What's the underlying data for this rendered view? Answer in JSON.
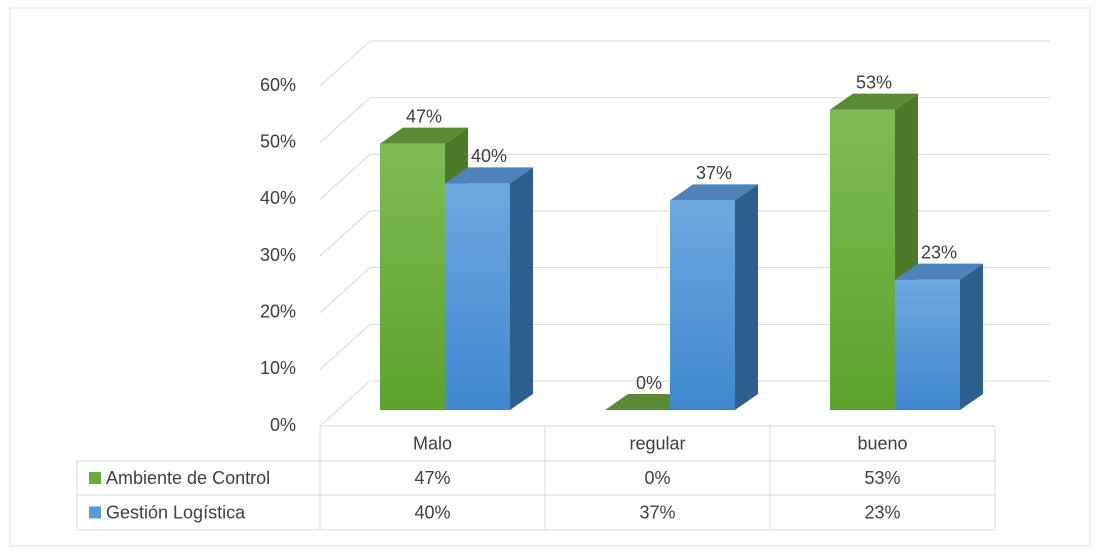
{
  "chart_data": {
    "type": "bar3d",
    "categories": [
      "Malo",
      "regular",
      "bueno"
    ],
    "series": [
      {
        "name": "Ambiente de Control",
        "color": "#6aab3c",
        "values": [
          47,
          0,
          53
        ],
        "value_labels": [
          "47%",
          "0%",
          "53%"
        ]
      },
      {
        "name": "Gestión Logística",
        "color": "#5b9bd5",
        "values": [
          40,
          37,
          23
        ],
        "value_labels": [
          "40%",
          "37%",
          "23%"
        ]
      }
    ],
    "ylim": [
      0,
      60
    ],
    "yticks": [
      {
        "value": 0,
        "label": "0%"
      },
      {
        "value": 10,
        "label": "10%"
      },
      {
        "value": 20,
        "label": "20%"
      },
      {
        "value": 30,
        "label": "30%"
      },
      {
        "value": 40,
        "label": "40%"
      },
      {
        "value": 50,
        "label": "50%"
      },
      {
        "value": 60,
        "label": "60%"
      }
    ],
    "grid": true,
    "data_table": true
  }
}
